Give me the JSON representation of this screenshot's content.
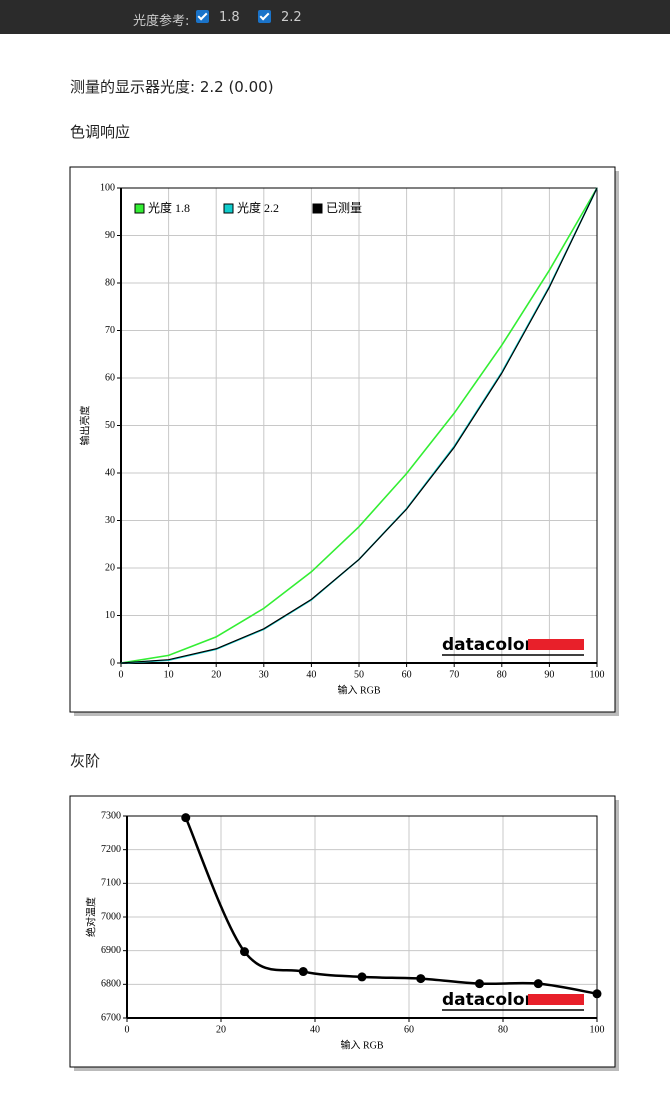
{
  "toolbar": {
    "label": "光度参考:",
    "options": [
      "1.8",
      "2.2"
    ]
  },
  "heading": "测量的显示器光度:  2.2 (0.00)",
  "chart_data": [
    {
      "type": "line",
      "title": "色调响应",
      "xlabel": "输入 RGB",
      "ylabel": "输出亮度",
      "watermark": "datacolor",
      "x": [
        0,
        10,
        20,
        30,
        40,
        50,
        60,
        70,
        80,
        90,
        100
      ],
      "series": [
        {
          "name": "光度 1.8",
          "color": "#33ee33",
          "values": [
            0,
            1.6,
            5.5,
            11.5,
            19.2,
            28.7,
            39.9,
            52.6,
            66.9,
            82.7,
            100
          ]
        },
        {
          "name": "光度 2.2",
          "color": "#11cccc",
          "values": [
            0,
            0.6,
            2.9,
            7.1,
            13.3,
            21.8,
            32.5,
            45.6,
            61.2,
            79.3,
            100
          ]
        },
        {
          "name": "已测量",
          "color": "#000000",
          "values": [
            0,
            0.7,
            3.0,
            7.2,
            13.4,
            21.8,
            32.4,
            45.4,
            61.0,
            79.1,
            100
          ]
        }
      ],
      "xlim": [
        0,
        100
      ],
      "xticks": [
        0,
        10,
        20,
        30,
        40,
        50,
        60,
        70,
        80,
        90,
        100
      ],
      "ylim": [
        0,
        100
      ],
      "yticks": [
        0,
        10,
        20,
        30,
        40,
        50,
        60,
        70,
        80,
        90,
        100
      ],
      "grid": true,
      "legend": "top-left"
    },
    {
      "type": "line",
      "title": "灰阶",
      "xlabel": "输入 RGB",
      "ylabel": "绝对温度",
      "watermark": "datacolor",
      "x": [
        12.5,
        25,
        37.5,
        50,
        62.5,
        75,
        87.5,
        100
      ],
      "series": [
        {
          "color": "#000000",
          "values": [
            7295,
            6897,
            6838,
            6822,
            6817,
            6802,
            6802,
            6772
          ],
          "markers": true,
          "smooth": true
        }
      ],
      "xlim": [
        0,
        100
      ],
      "xticks": [
        0,
        20,
        40,
        60,
        80,
        100
      ],
      "ylim": [
        6700,
        7300
      ],
      "yticks": [
        6700,
        6800,
        6900,
        7000,
        7100,
        7200,
        7300
      ],
      "grid": true
    }
  ]
}
